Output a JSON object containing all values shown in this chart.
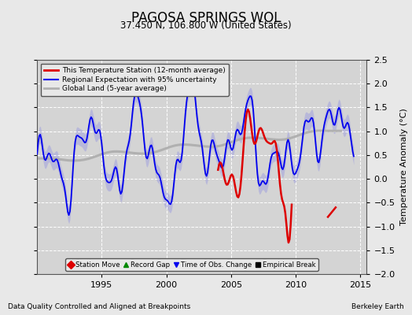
{
  "title": "PAGOSA SPRINGS WOL",
  "subtitle": "37.450 N, 106.800 W (United States)",
  "ylabel": "Temperature Anomaly (°C)",
  "footer_left": "Data Quality Controlled and Aligned at Breakpoints",
  "footer_right": "Berkeley Earth",
  "xlim": [
    1990.0,
    2015.5
  ],
  "ylim": [
    -2.0,
    2.5
  ],
  "yticks": [
    -2.0,
    -1.5,
    -1.0,
    -0.5,
    0.0,
    0.5,
    1.0,
    1.5,
    2.0,
    2.5
  ],
  "xticks": [
    1995,
    2000,
    2005,
    2010,
    2015
  ],
  "bg_color": "#e8e8e8",
  "plot_bg_color": "#d4d4d4",
  "grid_color": "#ffffff",
  "blue_line_color": "#0000ee",
  "blue_fill_color": "#aaaadd",
  "red_line_color": "#dd0000",
  "gray_line_color": "#b0b0b0",
  "legend1_entries": [
    {
      "label": "This Temperature Station (12-month average)",
      "color": "#dd0000",
      "lw": 2.0
    },
    {
      "label": "Regional Expectation with 95% uncertainty",
      "color": "#0000ee",
      "lw": 1.5
    },
    {
      "label": "Global Land (5-year average)",
      "color": "#b0b0b0",
      "lw": 2.0
    }
  ],
  "legend2_entries": [
    {
      "label": "Station Move",
      "marker": "D",
      "color": "#dd0000"
    },
    {
      "label": "Record Gap",
      "marker": "^",
      "color": "#008800"
    },
    {
      "label": "Time of Obs. Change",
      "marker": "v",
      "color": "#0000ee"
    },
    {
      "label": "Empirical Break",
      "marker": "s",
      "color": "#000000"
    }
  ]
}
